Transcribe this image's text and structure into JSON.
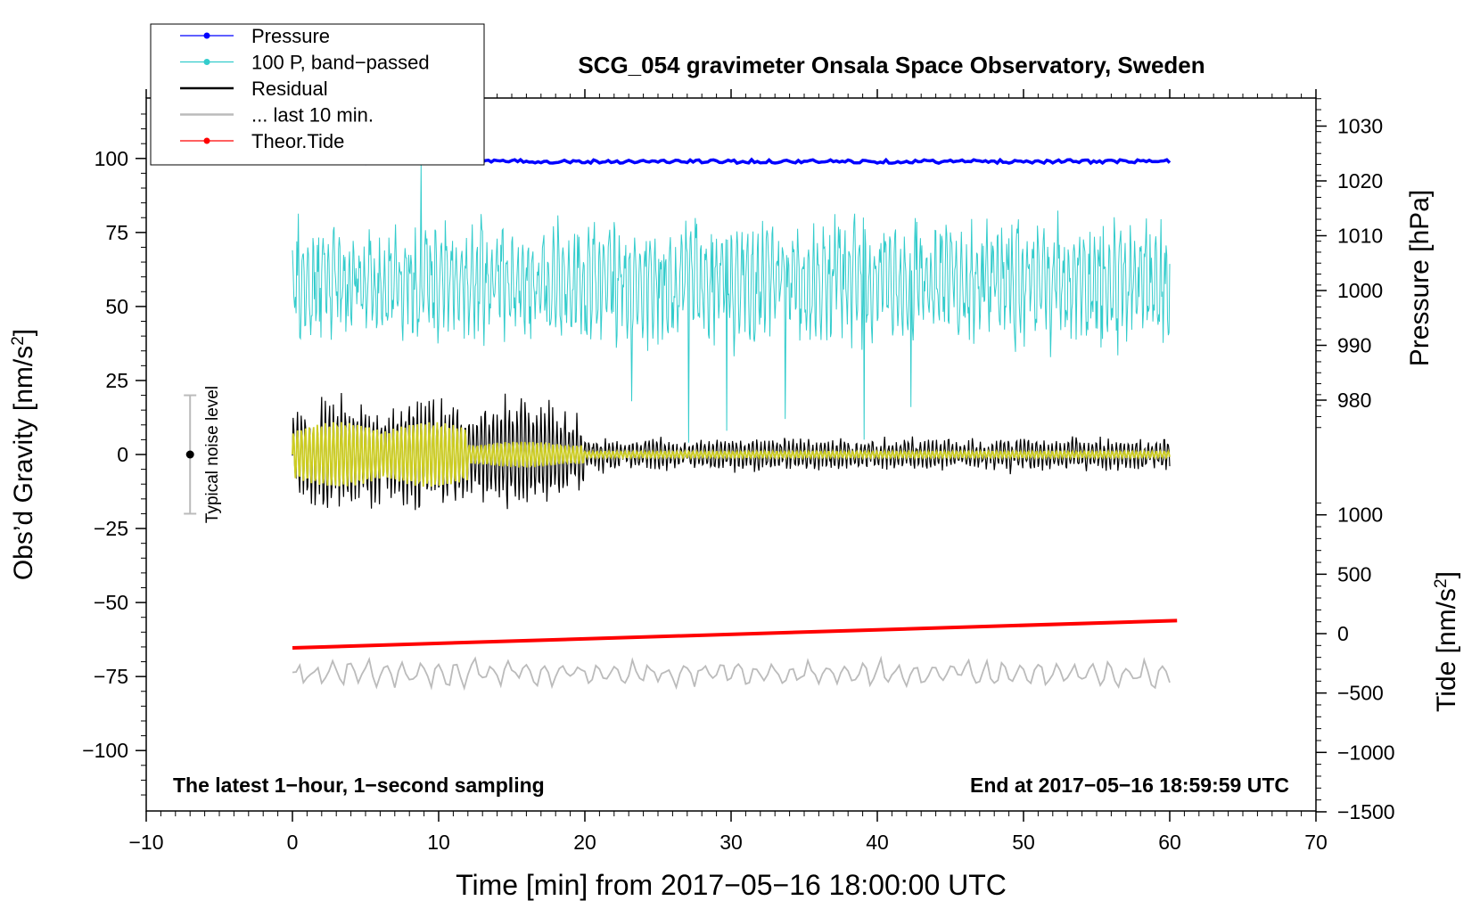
{
  "chart_data": {
    "type": "line",
    "title": "SCG_054 gravimeter Onsala Space Observatory, Sweden",
    "xlabel": "Time [min] from 2017−05−16 18:00:00 UTC",
    "ylabel_left": "Obs’d Gravity [nm/s²]",
    "ylabel_right_top": "Pressure [hPa]",
    "ylabel_right_bottom": "Tide [nm/s²]",
    "xlim": [
      -10,
      70
    ],
    "ylim": [
      -120,
      120
    ],
    "x_ticks": [
      -10,
      0,
      10,
      20,
      30,
      40,
      50,
      60,
      70
    ],
    "x_tick_labels": [
      "−10",
      "0",
      "10",
      "20",
      "30",
      "40",
      "50",
      "60",
      "70"
    ],
    "y_ticks": [
      100,
      75,
      50,
      25,
      0,
      -25,
      -50,
      -75,
      -100
    ],
    "y_tick_labels": [
      "100",
      "75",
      "50",
      "25",
      "0",
      "−25",
      "−50",
      "−75",
      "−100"
    ],
    "pressure_axis": {
      "ticks": [
        1030,
        1020,
        1010,
        1000,
        990,
        980
      ],
      "tick_labels": [
        "1030",
        "1020",
        "1010",
        "1000",
        "990",
        "980"
      ]
    },
    "tide_axis": {
      "ticks": [
        1000,
        500,
        0,
        -500,
        -1000,
        -1500
      ],
      "tick_labels": [
        "1000",
        "500",
        "0",
        "−500",
        "−1000",
        "−1500"
      ]
    },
    "legend": {
      "position": "top-left",
      "entries": [
        {
          "label": "Pressure",
          "color": "#0000ff",
          "marker": true
        },
        {
          "label": "100 P, band−passed",
          "color": "#33cccc",
          "marker": true
        },
        {
          "label": "Residual",
          "color": "#000000",
          "marker": false
        },
        {
          "label": "... last 10 min.",
          "color": "#bbbbbb",
          "marker": false
        },
        {
          "label": "Theor.Tide",
          "color": "#ff0000",
          "marker": true
        }
      ]
    },
    "noise_level": {
      "label": "Typical noise level",
      "x": -7,
      "center": 0,
      "halfwidth": 20
    },
    "series": [
      {
        "name": "Pressure",
        "color": "#0000ff",
        "x_range": [
          0,
          60
        ],
        "value_hpa": 1022.5,
        "level_nm_s2": 99
      },
      {
        "name": "100 P, band−passed",
        "color": "#33cccc",
        "x_range": [
          0,
          60
        ],
        "mean_nm_s2": 62,
        "amplitude_nm_s2": 20,
        "min_nm_s2": 4,
        "max_nm_s2": 98
      },
      {
        "name": "Residual",
        "color": "#000000",
        "x_range": [
          0,
          60
        ],
        "mean_nm_s2": 0,
        "amplitude_early_nm_s2": 20,
        "amplitude_late_nm_s2": 5
      },
      {
        "name": "Residual (smoothed)",
        "color": "#cccc22",
        "x_range": [
          0,
          60
        ],
        "mean_nm_s2": 0
      },
      {
        "name": "... last 10 min.",
        "color": "#bbbbbb",
        "x_range": [
          0,
          60
        ],
        "mean_nm_s2": -74
      },
      {
        "name": "Theor.Tide",
        "color": "#ff0000",
        "x": [
          0,
          60.5
        ],
        "tide_nm_s2": [
          -120,
          110
        ]
      }
    ],
    "annotations": {
      "bottom_left": "The latest 1−hour, 1−second sampling",
      "bottom_right": "End at 2017−05−16 18:59:59 UTC"
    }
  }
}
